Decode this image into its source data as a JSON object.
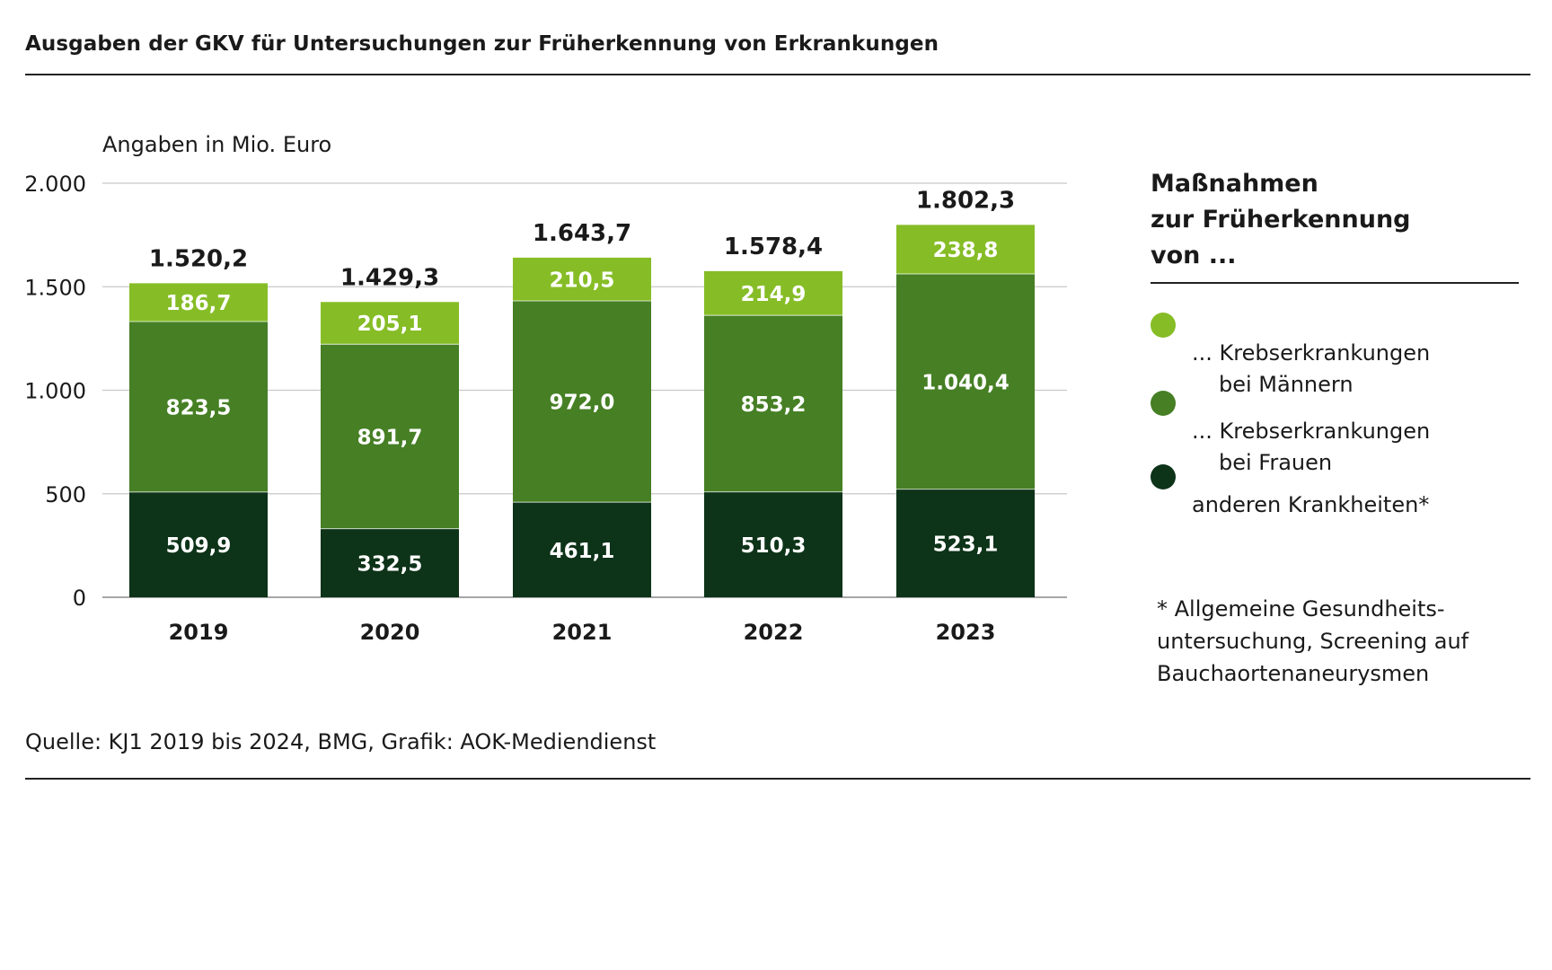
{
  "header": {
    "title": "Ausgaben der GKV für Untersuchungen zur Früherkennung von Erkrankungen"
  },
  "chart_data": {
    "type": "bar",
    "stacked": true,
    "unit_label": "Angaben in Mio. Euro",
    "categories": [
      "2019",
      "2020",
      "2021",
      "2022",
      "2023"
    ],
    "series": [
      {
        "name": "anderen Krankheiten*",
        "color": "#0d3318",
        "values": [
          509.9,
          332.5,
          461.1,
          510.3,
          523.1
        ],
        "labels": [
          "509,9",
          "332,5",
          "461,1",
          "510,3",
          "523,1"
        ]
      },
      {
        "name": "... Krebserkrankungen bei Frauen",
        "color": "#467f24",
        "values": [
          823.5,
          891.7,
          972.0,
          853.2,
          1040.4
        ],
        "labels": [
          "823,5",
          "891,7",
          "972,0",
          "853,2",
          "1.040,4"
        ]
      },
      {
        "name": "... Krebserkrankungen bei Männern",
        "color": "#86bd26",
        "values": [
          186.7,
          205.1,
          210.5,
          214.9,
          238.8
        ],
        "labels": [
          "186,7",
          "205,1",
          "210,5",
          "214,9",
          "238,8"
        ]
      }
    ],
    "totals": [
      1520.2,
      1429.3,
      1643.7,
      1578.4,
      1802.3
    ],
    "total_labels": [
      "1.520,2",
      "1.429,3",
      "1.643,7",
      "1.578,4",
      "1.802,3"
    ],
    "ylim": [
      0,
      2000
    ],
    "yticks": [
      0,
      500,
      1000,
      1500,
      2000
    ],
    "ytick_labels": [
      "0",
      "500",
      "1.000",
      "1.500",
      "2.000"
    ],
    "grid": true,
    "legend_position": "right"
  },
  "legend": {
    "title_lines": [
      "Maßnahmen",
      "zur Früherkennung",
      "von ..."
    ],
    "items": [
      {
        "line1": "... Krebserkrankungen",
        "line2": "bei Männern",
        "color": "#86bd26"
      },
      {
        "line1": "... Krebserkrankungen",
        "line2": "bei Frauen",
        "color": "#467f24"
      },
      {
        "line1": "anderen Krankheiten*",
        "line2": "",
        "color": "#0d3318"
      }
    ]
  },
  "footnote": {
    "lines": [
      "* Allgemeine Gesundheits-",
      "untersuchung, Screening auf",
      "Bauchaortenaneurysmen"
    ]
  },
  "source": "Quelle: KJ1 2019 bis 2024, BMG, Grafik: AOK-Mediendienst"
}
